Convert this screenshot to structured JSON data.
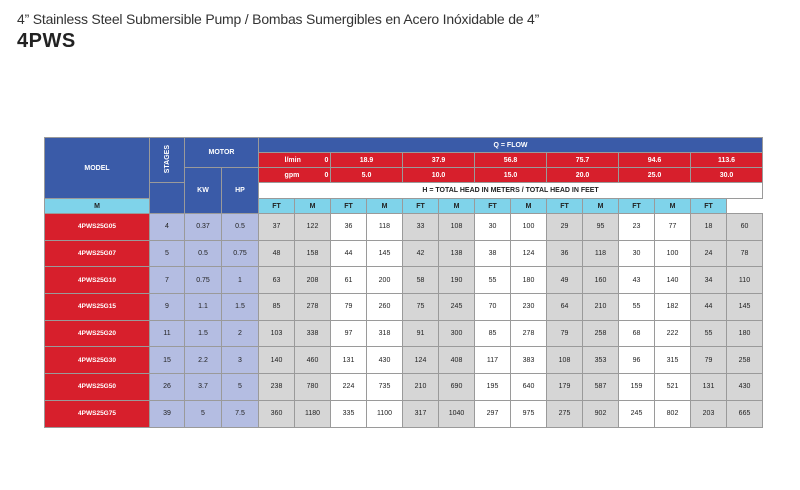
{
  "subtitle": "4” Stainless Steel Submersible Pump / Bombas Sumergibles en Acero Inóxidable de 4”",
  "heading": "4PWS",
  "table": {
    "model_label": "MODEL",
    "stages_label": "STAGES",
    "motor_label": "MOTOR",
    "kw_label": "KW",
    "hp_label": "HP",
    "flow_label": "Q = FLOW",
    "lmin_label": "l/min",
    "gpm_label": "gpm",
    "head_label": "H = TOTAL HEAD IN METERS / TOTAL HEAD IN FEET",
    "lmin_values": [
      "0",
      "18.9",
      "37.9",
      "56.8",
      "75.7",
      "94.6",
      "113.6"
    ],
    "gpm_values": [
      "0",
      "5.0",
      "10.0",
      "15.0",
      "20.0",
      "25.0",
      "30.0"
    ],
    "unit_m": "M",
    "unit_ft": "FT",
    "rows": [
      {
        "model": "4PWS25G05",
        "stages": "4",
        "kw": "0.37",
        "hp": "0.5",
        "heads": [
          "37",
          "122",
          "36",
          "118",
          "33",
          "108",
          "30",
          "100",
          "29",
          "95",
          "23",
          "77",
          "18",
          "60"
        ]
      },
      {
        "model": "4PWS25G07",
        "stages": "5",
        "kw": "0.5",
        "hp": "0.75",
        "heads": [
          "48",
          "158",
          "44",
          "145",
          "42",
          "138",
          "38",
          "124",
          "36",
          "118",
          "30",
          "100",
          "24",
          "78"
        ]
      },
      {
        "model": "4PWS25G10",
        "stages": "7",
        "kw": "0.75",
        "hp": "1",
        "heads": [
          "63",
          "208",
          "61",
          "200",
          "58",
          "190",
          "55",
          "180",
          "49",
          "160",
          "43",
          "140",
          "34",
          "110"
        ]
      },
      {
        "model": "4PWS25G15",
        "stages": "9",
        "kw": "1.1",
        "hp": "1.5",
        "heads": [
          "85",
          "278",
          "79",
          "260",
          "75",
          "245",
          "70",
          "230",
          "64",
          "210",
          "55",
          "182",
          "44",
          "145"
        ]
      },
      {
        "model": "4PWS25G20",
        "stages": "11",
        "kw": "1.5",
        "hp": "2",
        "heads": [
          "103",
          "338",
          "97",
          "318",
          "91",
          "300",
          "85",
          "278",
          "79",
          "258",
          "68",
          "222",
          "55",
          "180"
        ]
      },
      {
        "model": "4PWS25G30",
        "stages": "15",
        "kw": "2.2",
        "hp": "3",
        "heads": [
          "140",
          "460",
          "131",
          "430",
          "124",
          "408",
          "117",
          "383",
          "108",
          "353",
          "96",
          "315",
          "79",
          "258"
        ]
      },
      {
        "model": "4PWS25G50",
        "stages": "26",
        "kw": "3.7",
        "hp": "5",
        "heads": [
          "238",
          "780",
          "224",
          "735",
          "210",
          "690",
          "195",
          "640",
          "179",
          "587",
          "159",
          "521",
          "131",
          "430"
        ]
      },
      {
        "model": "4PWS25G75",
        "stages": "39",
        "kw": "5",
        "hp": "7.5",
        "heads": [
          "360",
          "1180",
          "335",
          "1100",
          "317",
          "1040",
          "297",
          "975",
          "275",
          "902",
          "245",
          "802",
          "203",
          "665"
        ]
      }
    ]
  }
}
